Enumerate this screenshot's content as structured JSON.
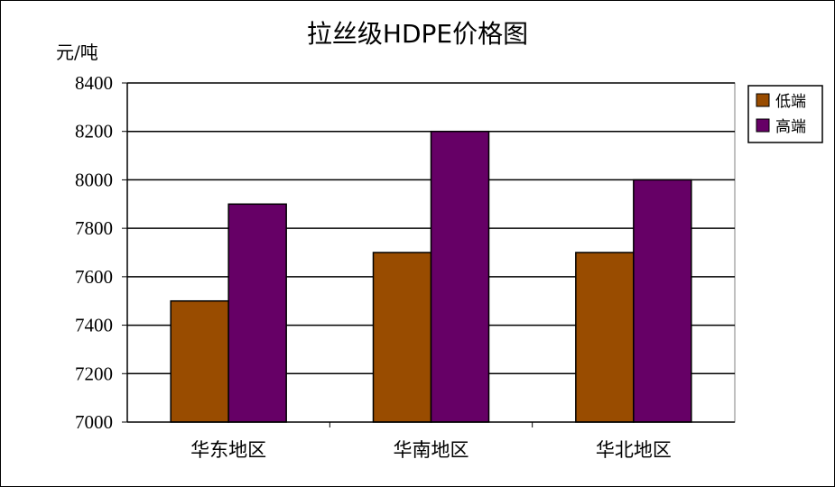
{
  "chart_data": {
    "type": "bar",
    "title": "拉丝级HDPE价格图",
    "ylabel": "元/吨",
    "xlabel": "",
    "categories": [
      "华东地区",
      "华南地区",
      "华北地区"
    ],
    "series": [
      {
        "name": "低端",
        "values": [
          7500,
          7700,
          7700
        ],
        "color": "#994C00"
      },
      {
        "name": "高端",
        "values": [
          7900,
          8200,
          8000
        ],
        "color": "#660066"
      }
    ],
    "ylim": [
      7000,
      8400
    ],
    "yticks": [
      7000,
      7200,
      7400,
      7600,
      7800,
      8000,
      8200,
      8400
    ],
    "grid": true,
    "legend_position": "right"
  }
}
